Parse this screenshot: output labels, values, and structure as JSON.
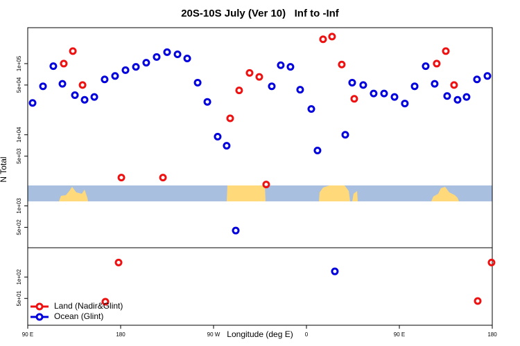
{
  "chart_data": {
    "type": "scatter",
    "title": "20S-10S July (Ver 10)   Inf to -Inf",
    "x_label": "Longitude (deg E)",
    "y_label": "N Total",
    "xlim": [
      90,
      540
    ],
    "xticks": [
      {
        "value": 90,
        "label": "90 E"
      },
      {
        "value": 180,
        "label": "180"
      },
      {
        "value": 270,
        "label": "90 W"
      },
      {
        "value": 360,
        "label": "0"
      },
      {
        "value": 450,
        "label": "90 E"
      },
      {
        "value": 540,
        "label": "180"
      }
    ],
    "ylim": [
      21,
      320000
    ],
    "y_log": true,
    "yticks": [
      {
        "value": 50,
        "label": "5e+01"
      },
      {
        "value": 100,
        "label": "1e+02"
      },
      {
        "value": 500,
        "label": "5e+02"
      },
      {
        "value": 1000,
        "label": "1e+03"
      },
      {
        "value": 5000,
        "label": "5e+03"
      },
      {
        "value": 10000,
        "label": "1e+04"
      },
      {
        "value": 50000,
        "label": "5e+04"
      },
      {
        "value": 100000,
        "label": "1e+05"
      }
    ],
    "legend": "lower left",
    "series": [
      {
        "name": "Land (Nadir&Glint)",
        "color": "#ee1111",
        "x": [
          124.9,
          133.7,
          143.1,
          165.2,
          178.0,
          180.7,
          221.0,
          286.1,
          294.8,
          304.9,
          314.3,
          321.0,
          376.1,
          384.8,
          394.2,
          406.3,
          486.2,
          495.0,
          503.0,
          525.9,
          539.3
        ],
        "values": [
          100000,
          150000,
          50000,
          45,
          160,
          2500,
          2500,
          17000,
          42000,
          74000,
          65000,
          2000,
          220000,
          240000,
          97000,
          32000,
          100000,
          150000,
          50000,
          46,
          160
        ]
      },
      {
        "name": "Ocean (Glint)",
        "color": "#0000dd",
        "x": [
          94.7,
          104.8,
          114.8,
          123.6,
          135.7,
          145.1,
          154.5,
          164.5,
          174.6,
          184.7,
          194.8,
          204.8,
          214.9,
          225.0,
          235.1,
          244.5,
          254.6,
          264.0,
          274.0,
          282.7,
          291.5,
          326.4,
          335.1,
          344.5,
          353.9,
          364.7,
          370.7,
          387.5,
          397.6,
          404.3,
          415.0,
          425.1,
          435.2,
          445.3,
          455.3,
          464.8,
          475.5,
          484.2,
          496.3,
          506.4,
          515.1,
          525.2,
          535.3
        ],
        "values": [
          28000,
          48000,
          92000,
          52000,
          36000,
          31000,
          34000,
          60000,
          67000,
          81000,
          90000,
          103000,
          124000,
          145000,
          135000,
          118000,
          54000,
          29000,
          9400,
          7000,
          450,
          48000,
          95000,
          90000,
          43000,
          23000,
          6000,
          120,
          10000,
          54000,
          50000,
          38000,
          38000,
          34000,
          27500,
          48000,
          92000,
          52000,
          35000,
          31000,
          34000,
          60000,
          67000
        ]
      }
    ]
  }
}
